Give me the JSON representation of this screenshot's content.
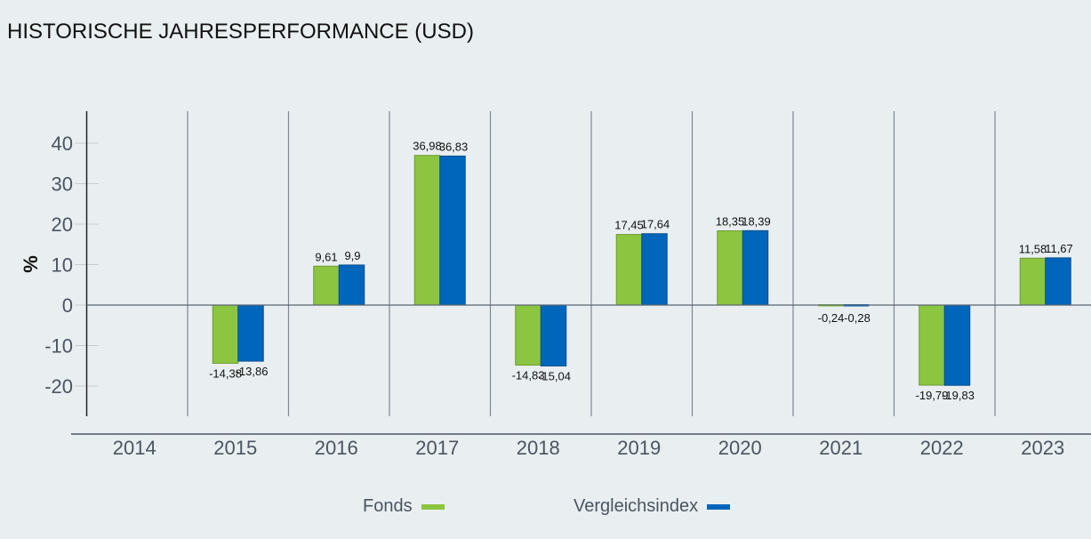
{
  "title": "HISTORISCHE JAHRESPERFORMANCE (USD)",
  "legend": {
    "items": [
      {
        "label": "Fonds",
        "color": "#8cc540"
      },
      {
        "label": "Vergleichsindex",
        "color": "#0066bb"
      }
    ]
  },
  "chart_data": {
    "type": "bar",
    "title": "HISTORISCHE JAHRESPERFORMANCE (USD)",
    "xlabel": "",
    "ylabel": "%",
    "ylim": [
      -28,
      48
    ],
    "yticks": [
      -20,
      -10,
      0,
      10,
      20,
      30,
      40
    ],
    "grid": "vertical category separators",
    "legend_position": "bottom",
    "categories": [
      "2014",
      "2015",
      "2016",
      "2017",
      "2018",
      "2019",
      "2020",
      "2021",
      "2022",
      "2023"
    ],
    "series": [
      {
        "name": "Fonds",
        "color": "#8cc540",
        "values": [
          null,
          -14.38,
          9.61,
          36.98,
          -14.83,
          17.45,
          18.35,
          -0.24,
          -19.79,
          11.58
        ],
        "labels": [
          null,
          "-14,38",
          "9,61",
          "36,98",
          "-14,83",
          "17,45",
          "18,35",
          "-0,24",
          "-19,79",
          "11,58"
        ]
      },
      {
        "name": "Vergleichsindex",
        "color": "#0066bb",
        "values": [
          null,
          -13.86,
          9.9,
          36.83,
          -15.04,
          17.64,
          18.39,
          -0.28,
          -19.83,
          11.67
        ],
        "labels": [
          null,
          "-13,86",
          "9,9",
          "36,83",
          "-15,04",
          "17,64",
          "18,39",
          "-0,28",
          "-19,83",
          "11,67"
        ]
      }
    ]
  }
}
